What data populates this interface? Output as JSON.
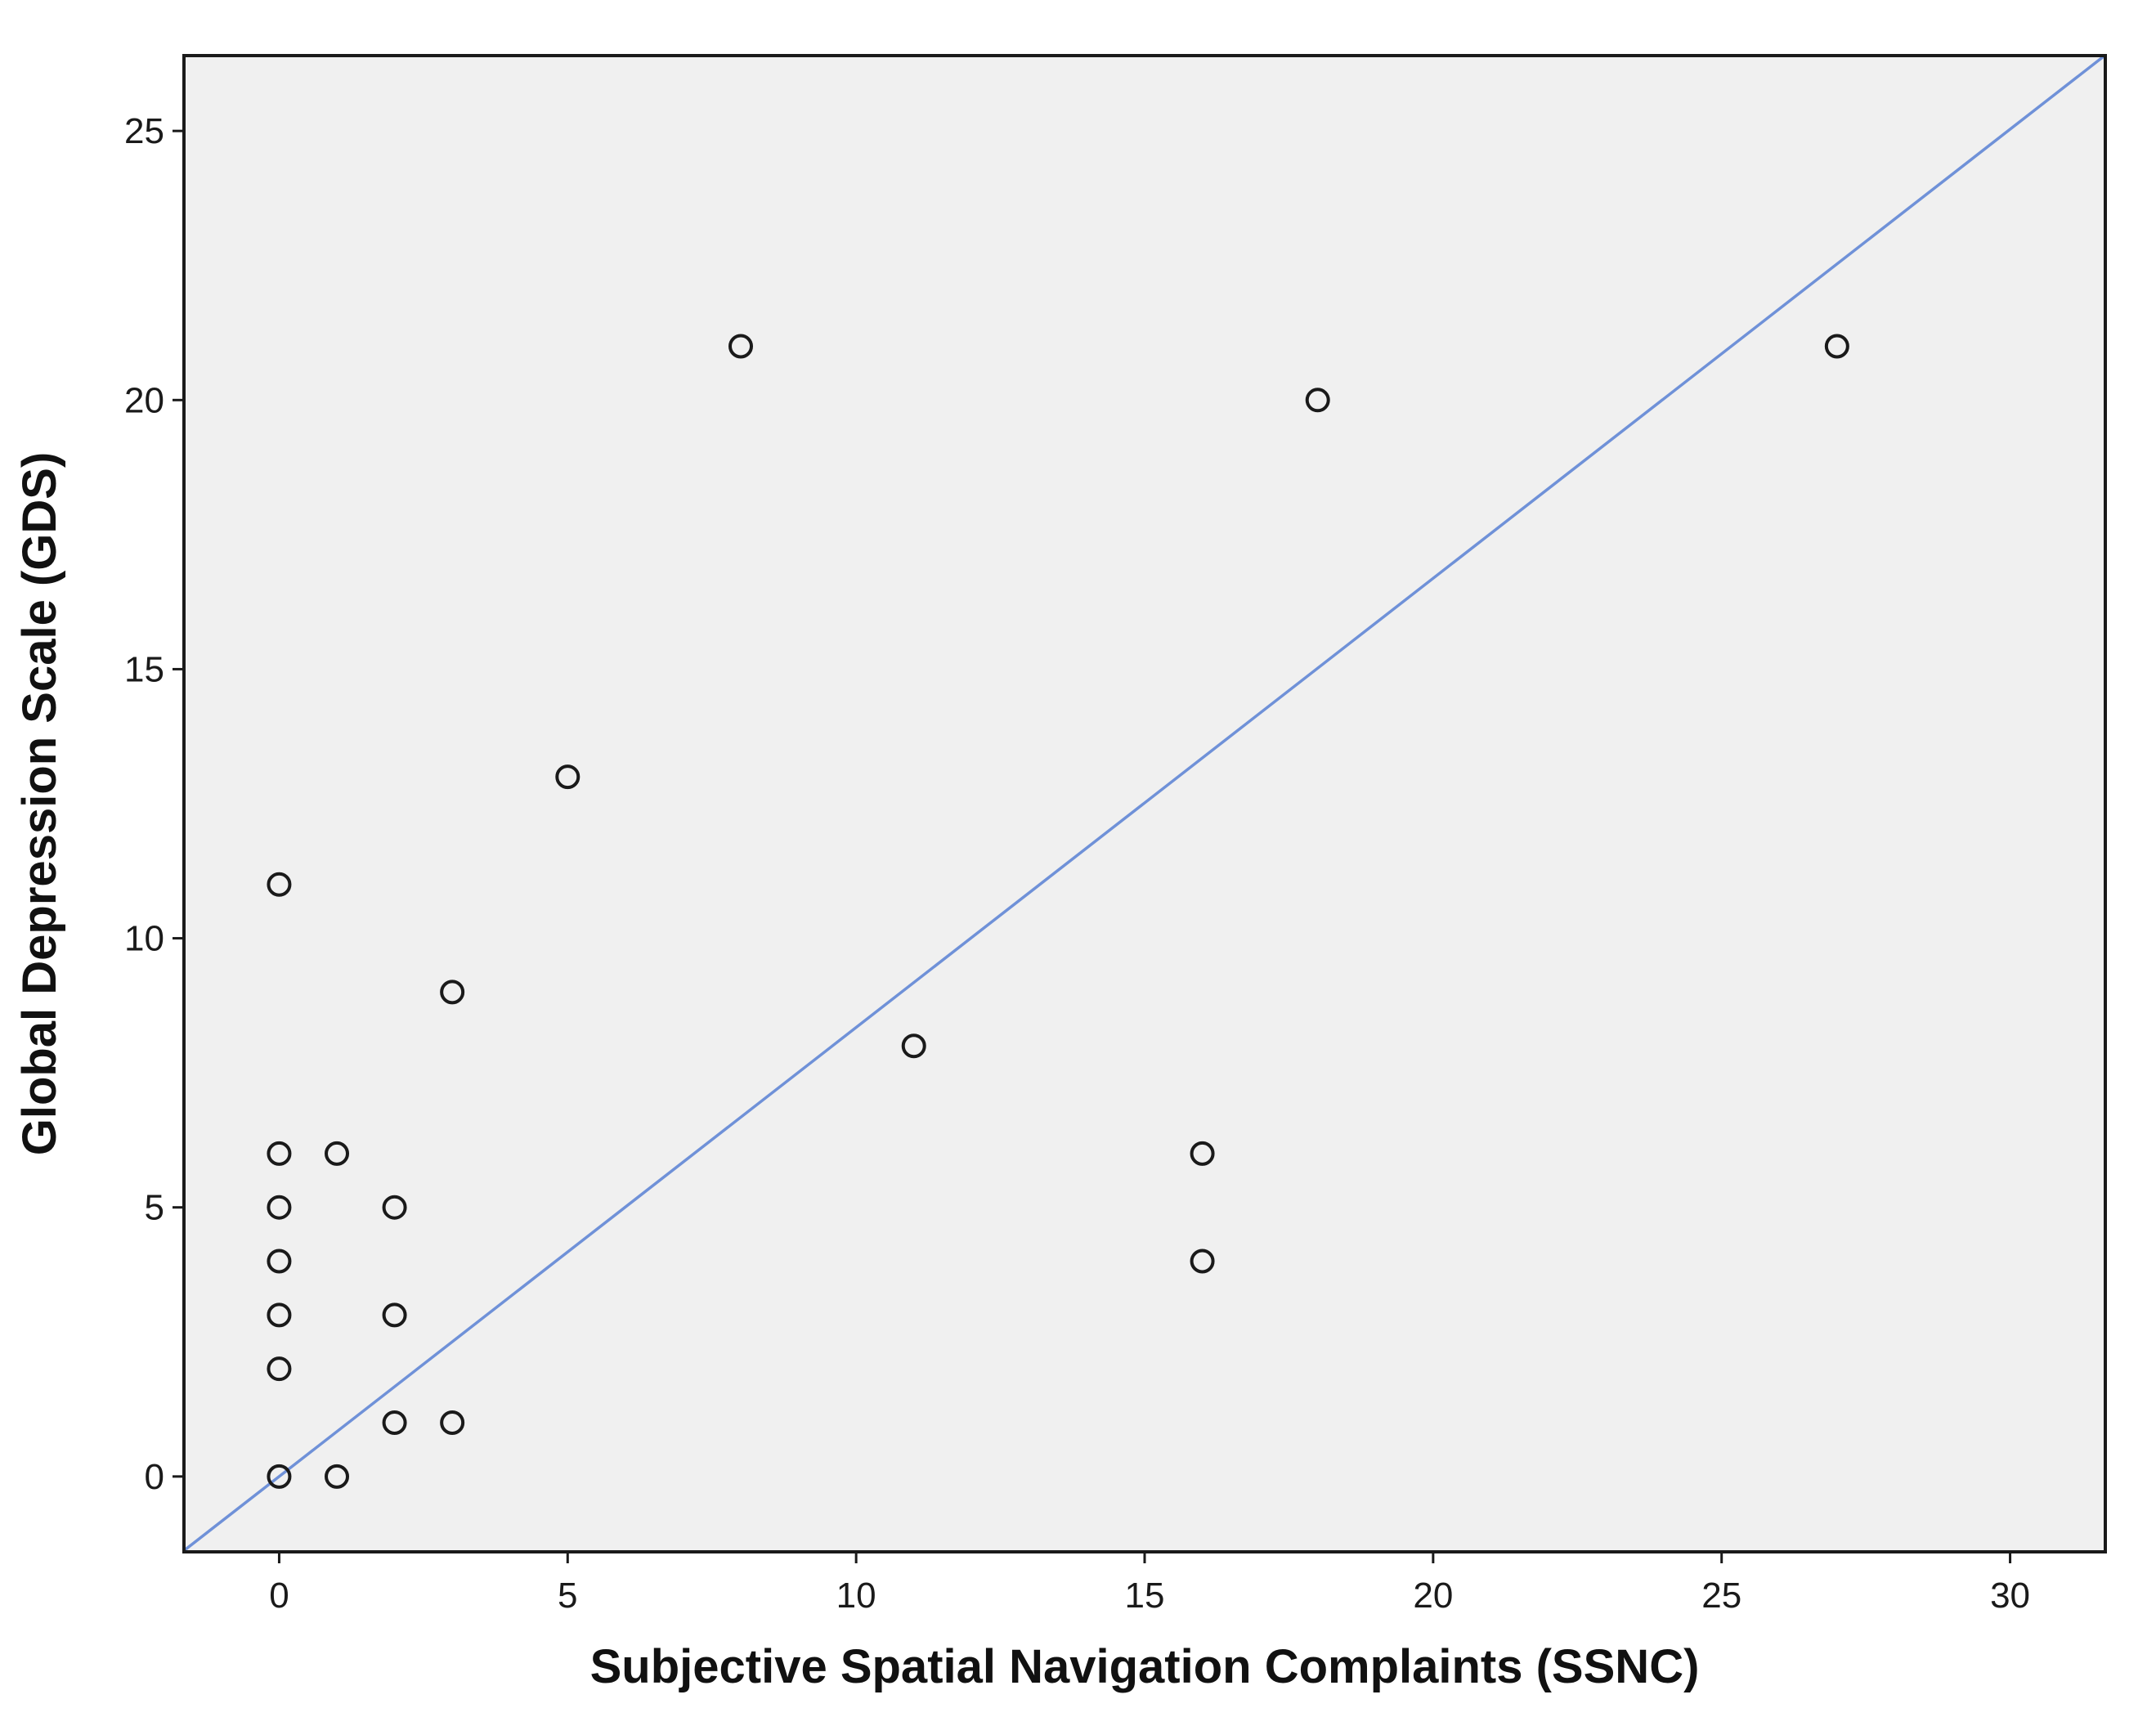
{
  "chart_data": {
    "type": "scatter",
    "xlabel": "Subjective Spatial Navigation Complaints (SSNC)",
    "ylabel": "Global Depression Scale (GDS)",
    "xlim": [
      -1.65,
      31.65
    ],
    "ylim": [
      -1.4,
      26.4
    ],
    "x_ticks": [
      0,
      5,
      10,
      15,
      20,
      25,
      30
    ],
    "y_ticks": [
      0,
      5,
      10,
      15,
      20,
      25
    ],
    "grid": false,
    "colors": {
      "plot_background": "#f0f0f0",
      "point_stroke": "#1a1a1a",
      "fit_line": "#6f91d8"
    },
    "points": [
      {
        "x": 0,
        "y": 11
      },
      {
        "x": 0,
        "y": 6
      },
      {
        "x": 0,
        "y": 5
      },
      {
        "x": 0,
        "y": 4
      },
      {
        "x": 0,
        "y": 3
      },
      {
        "x": 0,
        "y": 2
      },
      {
        "x": 0,
        "y": 0
      },
      {
        "x": 1,
        "y": 6
      },
      {
        "x": 1,
        "y": 0
      },
      {
        "x": 2,
        "y": 5
      },
      {
        "x": 2,
        "y": 3
      },
      {
        "x": 2,
        "y": 1
      },
      {
        "x": 3,
        "y": 9
      },
      {
        "x": 3,
        "y": 1
      },
      {
        "x": 5,
        "y": 13
      },
      {
        "x": 8,
        "y": 21
      },
      {
        "x": 11,
        "y": 8
      },
      {
        "x": 16,
        "y": 6
      },
      {
        "x": 16,
        "y": 4
      },
      {
        "x": 18,
        "y": 20
      },
      {
        "x": 27,
        "y": 21
      }
    ],
    "fit_line": {
      "intercept": 0,
      "slope": 0.8344
    }
  }
}
